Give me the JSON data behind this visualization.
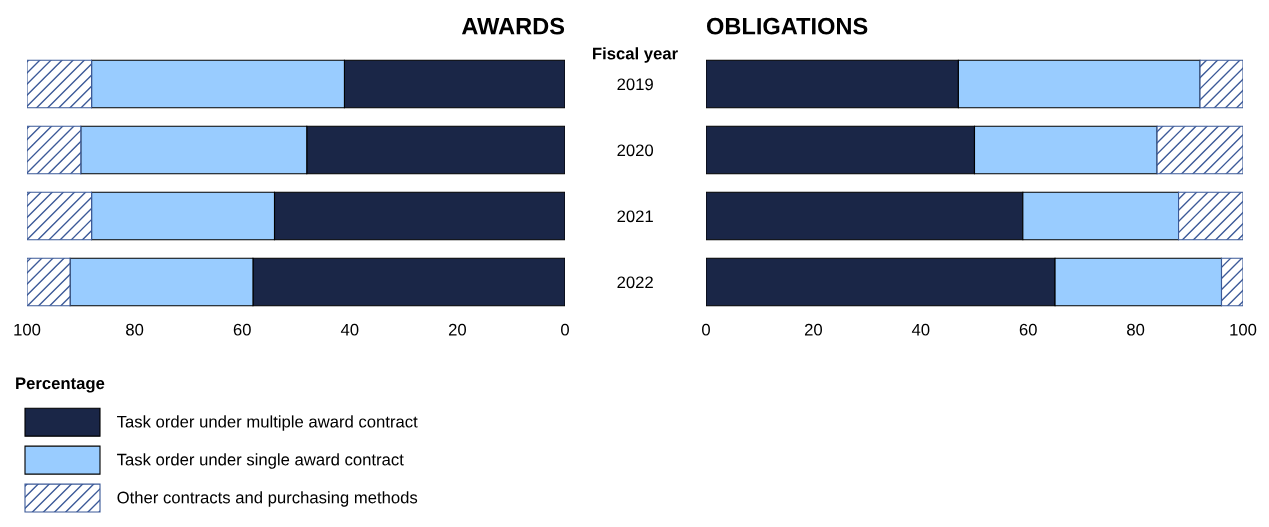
{
  "chart_data": [
    {
      "type": "bar",
      "title": "AWARDS",
      "orientation": "horizontal",
      "stacked": true,
      "xlabel": "Percentage",
      "categories": [
        "2019",
        "2020",
        "2021",
        "2022"
      ],
      "xlim": [
        100,
        0
      ],
      "xticks": [
        100,
        80,
        60,
        40,
        20,
        0
      ],
      "tick_labels": "x",
      "grid": false,
      "legend": "bottom left",
      "series": [
        {
          "name": "Task order under multiple award contract",
          "color": "#1a2647",
          "values": [
            41,
            48,
            54,
            58
          ]
        },
        {
          "name": "Task order under single award contract",
          "color": "#99ccff",
          "values": [
            47,
            42,
            34,
            34
          ]
        },
        {
          "name": "Other contracts and purchasing methods",
          "color": "#3b5998",
          "values": [
            12,
            10,
            12,
            8
          ]
        }
      ]
    },
    {
      "type": "bar",
      "title": "OBLIGATIONS",
      "orientation": "horizontal",
      "stacked": true,
      "ylabel": "Fiscal year",
      "categories": [
        "2019",
        "2020",
        "2021",
        "2022"
      ],
      "xlim": [
        0,
        100
      ],
      "xticks": [
        0,
        20,
        40,
        60,
        80,
        100
      ],
      "grid": false,
      "legend": false,
      "series": [
        {
          "color": "#1a2647",
          "values": [
            47,
            50,
            59,
            65
          ]
        },
        {
          "color": "#99ccff",
          "values": [
            45,
            34,
            29,
            31
          ]
        },
        {
          "color": "#3b5998",
          "values": [
            8,
            16,
            12,
            4
          ]
        }
      ]
    }
  ]
}
